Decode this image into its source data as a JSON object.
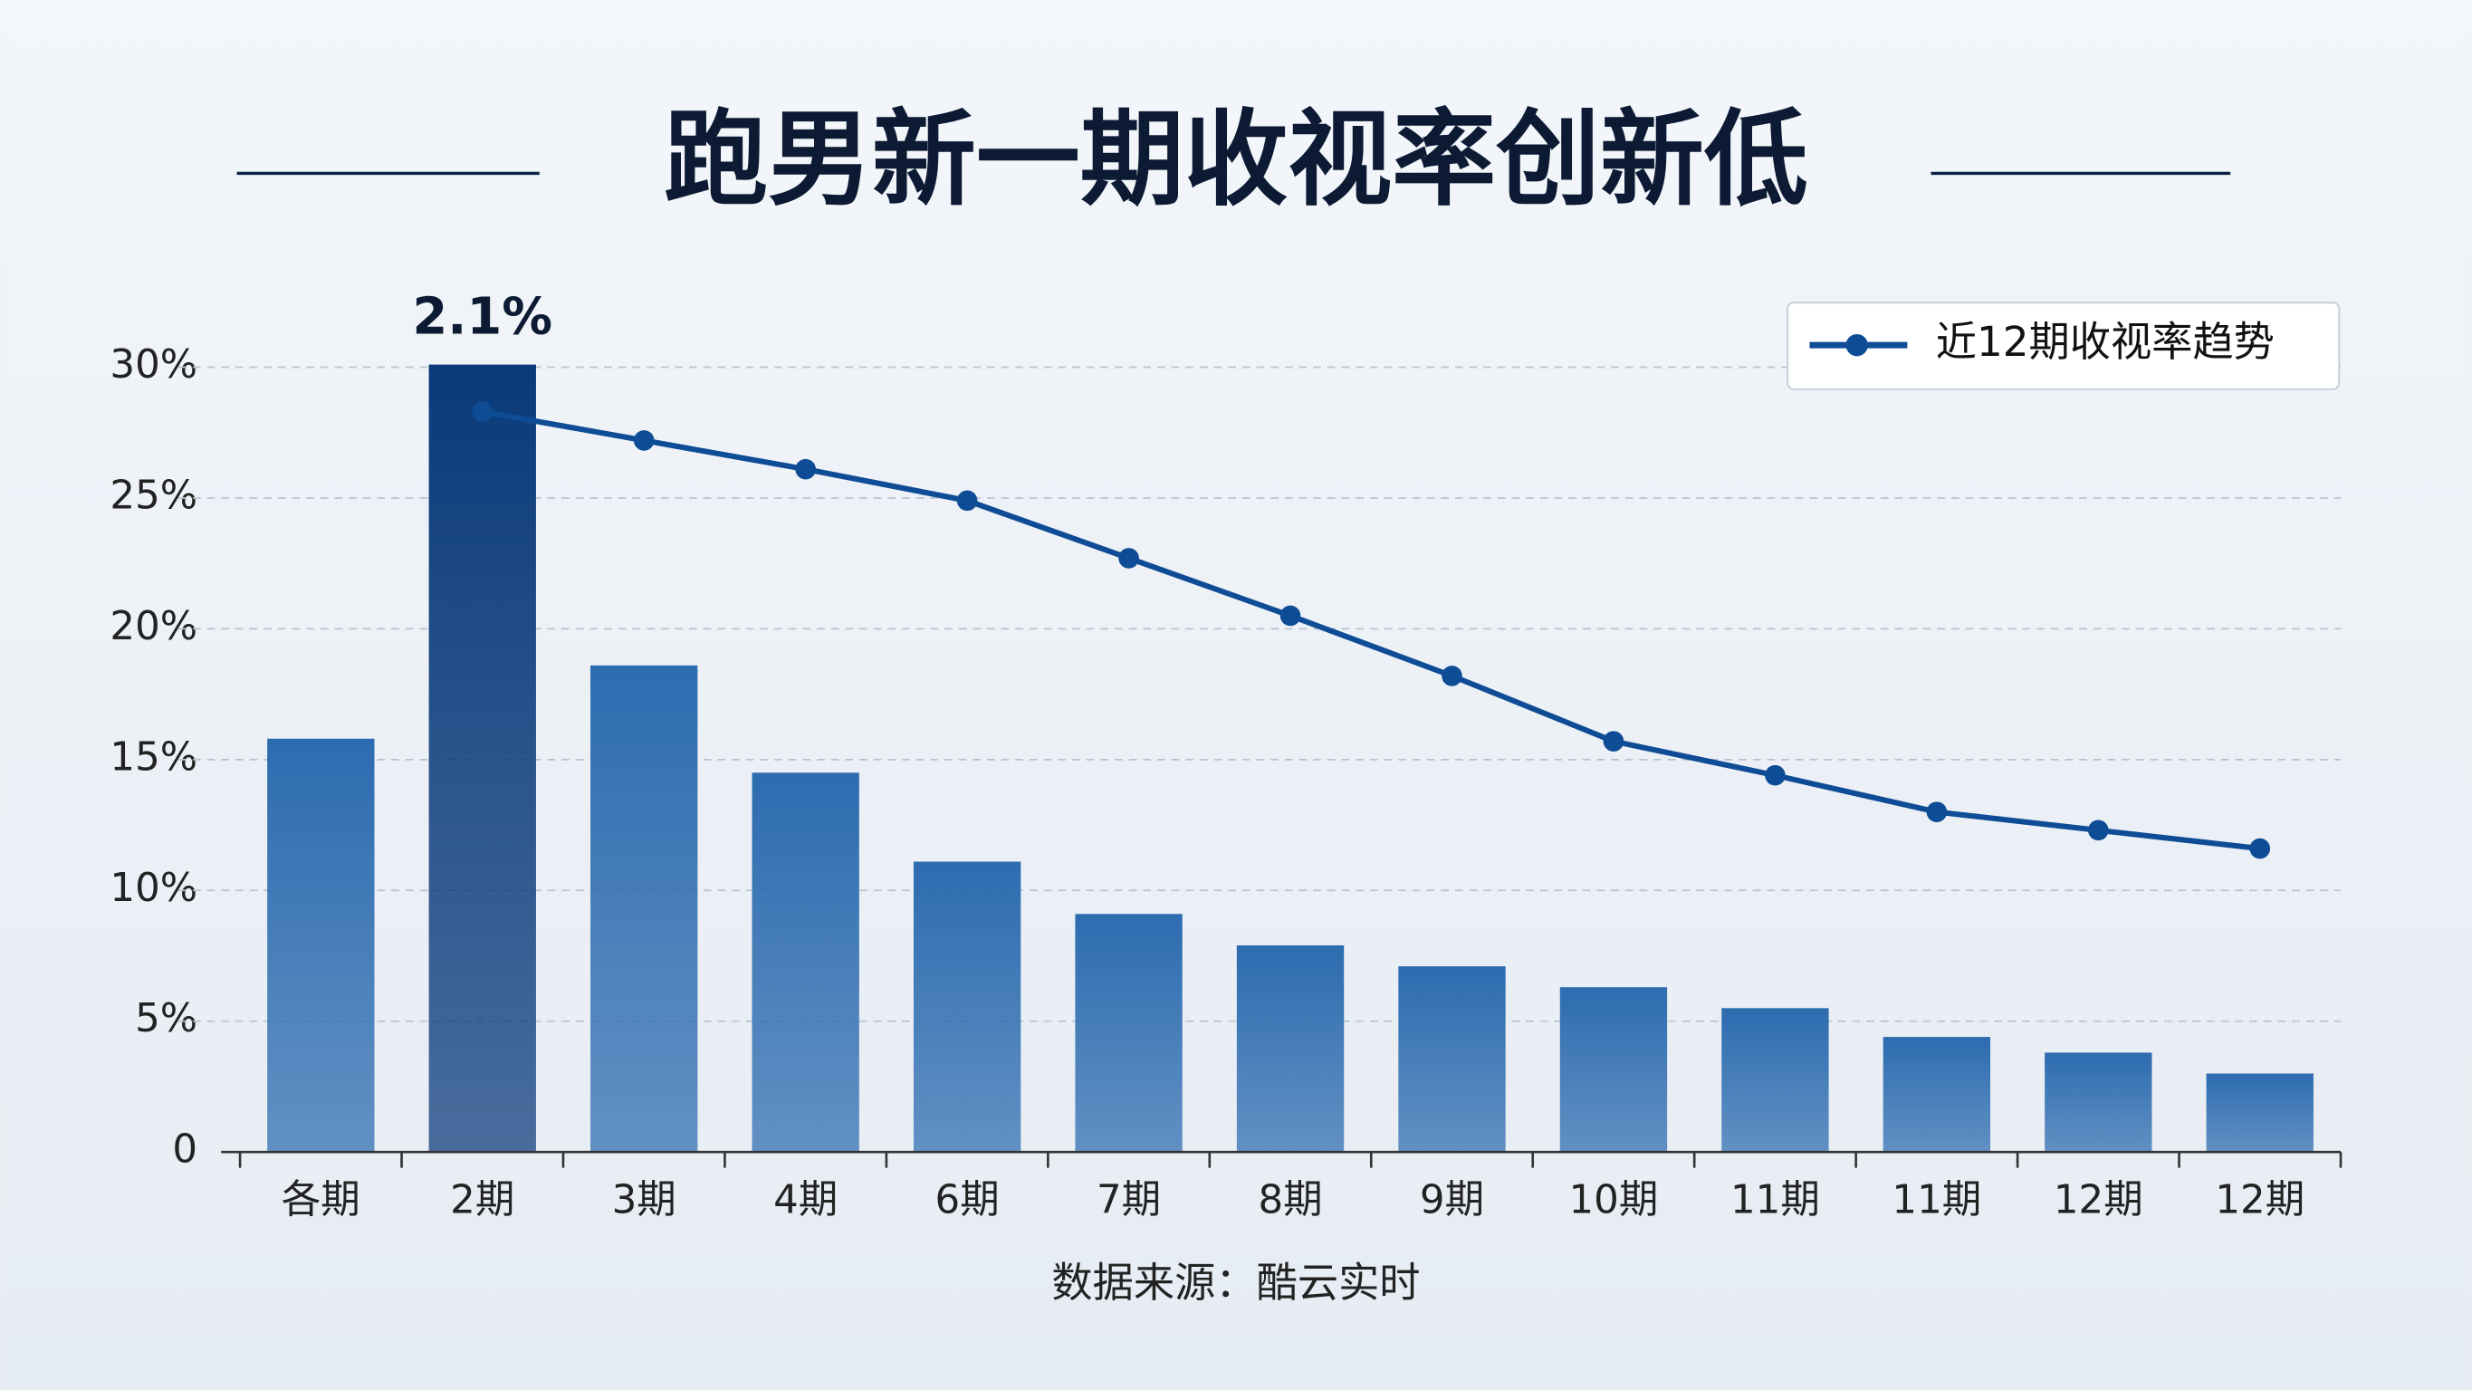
{
  "chart_data": {
    "type": "bar",
    "title": "跑男新一期收视率创新低",
    "annotation": "2.1%",
    "source": "数据来源：酷云实时",
    "categories": [
      "各期",
      "2期",
      "3期",
      "4期",
      "6期",
      "7期",
      "8期",
      "9期",
      "10期",
      "11期",
      "11期",
      "12期",
      "12期"
    ],
    "values": [
      15.8,
      30.1,
      18.6,
      14.5,
      11.1,
      9.1,
      7.9,
      7.1,
      6.3,
      5.5,
      4.4,
      3.8,
      3.0
    ],
    "colors": [
      "#2d6cb0",
      "#0a3a7a",
      "#2d6cb0",
      "#2d6cb0",
      "#2d6cb0",
      "#2d6cb0",
      "#2d6cb0",
      "#2d6cb0",
      "#2d6cb0",
      "#2d6cb0",
      "#2d6cb0",
      "#2d6cb0",
      "#2d6cb0"
    ],
    "series": [
      {
        "name": "近12期收视率趋势",
        "type": "line",
        "color": "#0f4c96",
        "values": [
          null,
          28.3,
          27.2,
          26.1,
          24.9,
          22.7,
          20.5,
          18.2,
          15.7,
          14.4,
          13.0,
          12.3,
          11.6
        ]
      }
    ],
    "ylim": [
      0,
      30
    ],
    "yticks": [
      0,
      {
        "value": 5,
        "label": "5%"
      },
      {
        "value": 10,
        "label": "10%"
      },
      {
        "value": 15,
        "label": "15%"
      },
      {
        "value": 20,
        "label": "20%"
      },
      {
        "value": 25,
        "label": "25%"
      },
      {
        "value": 30,
        "label": "30%"
      }
    ],
    "grid": true,
    "legend": "top-right"
  }
}
